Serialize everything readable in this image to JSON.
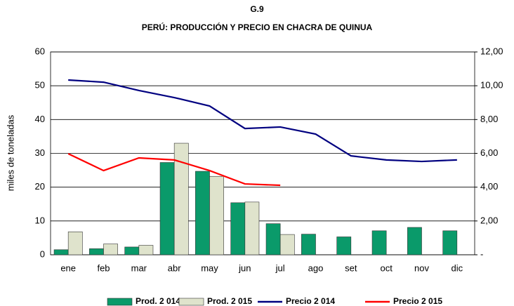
{
  "chart_data": {
    "type": "bar",
    "title": "G.9",
    "subtitle": "PERÚ: PRODUCCIÓN Y PRECIO EN CHACRA DE QUINUA",
    "ylabel": "miles de toneladas",
    "categories": [
      "ene",
      "feb",
      "mar",
      "abr",
      "may",
      "jun",
      "jul",
      "ago",
      "set",
      "oct",
      "nov",
      "dic"
    ],
    "series": [
      {
        "name": "Prod. 2 014",
        "type": "bar",
        "color": "#0a9a6a",
        "values": [
          1.5,
          1.8,
          2.3,
          27.3,
          24.7,
          15.4,
          9.2,
          6.1,
          5.3,
          7.1,
          8.1,
          7.1
        ]
      },
      {
        "name": "Prod. 2 015",
        "type": "bar",
        "color": "#dfe3cc",
        "values": [
          6.8,
          3.2,
          2.8,
          33,
          23.2,
          15.6,
          6.0,
          null,
          null,
          null,
          null,
          null
        ]
      },
      {
        "name": "Precio 2 014",
        "type": "line",
        "axis": "y2",
        "color": "#000080",
        "values": [
          10.34,
          10.21,
          9.72,
          9.3,
          8.8,
          7.47,
          7.56,
          7.14,
          5.85,
          5.61,
          5.52,
          5.61
        ]
      },
      {
        "name": "Precio 2 015",
        "type": "line",
        "axis": "y2",
        "color": "#ff0000",
        "values": [
          5.98,
          4.98,
          5.73,
          5.61,
          4.98,
          4.19,
          4.11,
          null,
          null,
          null,
          null,
          null
        ]
      }
    ],
    "ylim": [
      0,
      60
    ],
    "yticks": [
      0,
      10,
      20,
      30,
      40,
      50,
      60
    ],
    "y2lim": [
      0,
      12
    ],
    "y2ticks": [
      {
        "value": 0,
        "label": "-"
      },
      {
        "value": 2,
        "label": "2,00"
      },
      {
        "value": 4,
        "label": "4,00"
      },
      {
        "value": 6,
        "label": "6,00"
      },
      {
        "value": 8,
        "label": "8,00"
      },
      {
        "value": 10,
        "label": "10,00"
      },
      {
        "value": 12,
        "label": "12,00"
      }
    ],
    "grid": true,
    "legend": "bottom"
  }
}
